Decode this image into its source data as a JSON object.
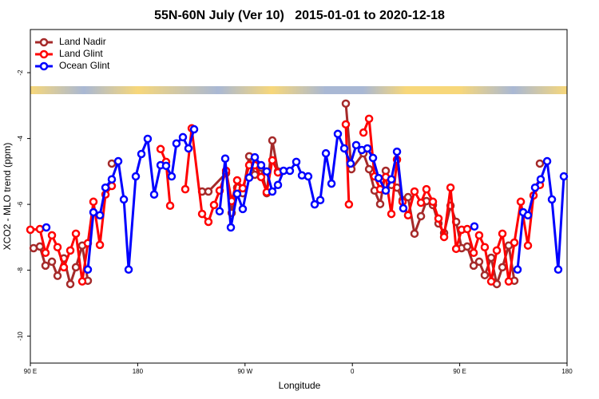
{
  "chart_data": {
    "type": "line",
    "title": "55N-60N July (Ver 10)   2015-01-01 to 2020-12-18",
    "xlabel": "Longitude",
    "ylabel": "XCO2 - MLO trend (ppm)",
    "xlim": [
      90,
      540
    ],
    "xticks": [
      {
        "value": 90,
        "label": "90 E"
      },
      {
        "value": 180,
        "label": "180"
      },
      {
        "value": 270,
        "label": "90 W"
      },
      {
        "value": 360,
        "label": "0"
      },
      {
        "value": 450,
        "label": "90 E"
      },
      {
        "value": 540,
        "label": "180"
      }
    ],
    "ylim": [
      -10.82,
      -0.69
    ],
    "yticks": [
      -2,
      -4,
      -6,
      -8,
      -10
    ],
    "legend": "upper left",
    "series": [
      {
        "name": "Land Nadir",
        "color": "#a52a2a",
        "x": [
          92.7,
          98,
          102.7,
          108.1,
          112.8,
          118.1,
          123.5,
          128.2,
          133.5,
          138.2,
          null,
          158.3,
          null,
          234,
          239.3,
          254.1,
          258.8,
          263.4,
          268.1,
          273.5,
          278.2,
          283.5,
          288.2,
          292.9,
          297.6,
          null,
          354.5,
          359.2,
          369.3,
          374,
          378.6,
          383.3,
          388,
          392.7,
          397.4,
          402.1,
          406.7,
          412.1,
          417.5,
          422.1,
          427.5,
          432.2,
          436.9,
          442.3,
          447,
          451.6,
          456.3,
          461.7,
          466.3,
          471,
          476.4,
          481.1,
          485.8,
          491.1,
          495.8,
          null,
          517.2
        ],
        "values": [
          -7.33,
          -7.28,
          -7.86,
          -7.74,
          -8.17,
          -7.64,
          -8.42,
          -7.91,
          -7.25,
          -8.32,
          null,
          -4.76,
          null,
          -5.61,
          -5.61,
          -5.05,
          -6.26,
          -5.49,
          -5.66,
          -4.54,
          -5.1,
          -4.88,
          -5.66,
          -4.06,
          -5.0,
          null,
          -2.94,
          -4.93,
          -4.45,
          -4.93,
          -5.58,
          -5.99,
          -4.98,
          -5.41,
          -5.49,
          -5.87,
          -5.78,
          -6.89,
          -6.36,
          -5.9,
          -6.02,
          -6.58,
          -6.87,
          -6.04,
          -6.53,
          -7.33,
          -7.28,
          -7.86,
          -7.74,
          -8.15,
          -7.62,
          -8.42,
          -7.91,
          -7.25,
          -8.32,
          null,
          -4.76
        ]
      },
      {
        "name": "Land Glint",
        "color": "#ff0000",
        "x": [
          90,
          98,
          102.7,
          108.1,
          112.8,
          118.1,
          123.5,
          128.2,
          133.5,
          138.2,
          142.9,
          148.3,
          153,
          158.3,
          null,
          199.2,
          203.8,
          207.2,
          null,
          219.9,
          225.3,
          234,
          239.3,
          244,
          248.7,
          254.1,
          258.8,
          263.4,
          268.1,
          273.5,
          278.2,
          283.5,
          288.2,
          292.9,
          297.6,
          null,
          354.5,
          357.1,
          null,
          369.3,
          374,
          378.6,
          383.3,
          388,
          392.7,
          397.4,
          402.1,
          406.7,
          412.1,
          417.5,
          422.1,
          427.5,
          432.2,
          436.9,
          442.3,
          447,
          451.6,
          456.3,
          461.7,
          466.3,
          471,
          476.4,
          481.1,
          485.8,
          491.1,
          495.8,
          501.2,
          507.2,
          511.9,
          517.2
        ],
        "values": [
          -6.77,
          -6.75,
          -7.47,
          -6.94,
          -7.3,
          -7.91,
          -7.4,
          -6.89,
          -8.34,
          -7.18,
          -5.92,
          -7.23,
          -5.7,
          -5.44,
          null,
          -4.32,
          -4.71,
          -6.04,
          null,
          -5.54,
          -3.69,
          -6.29,
          -6.53,
          -6.02,
          -5.58,
          -4.98,
          -5.9,
          -5.27,
          -5.51,
          -4.81,
          -4.81,
          -5.17,
          -5.63,
          -4.66,
          -5.03,
          null,
          -3.57,
          -6.0,
          null,
          -3.82,
          -3.4,
          -5.15,
          -5.54,
          -5.17,
          -6.29,
          -4.64,
          -5.92,
          -6.33,
          -5.61,
          -5.95,
          -5.54,
          -5.92,
          -6.43,
          -6.99,
          -5.49,
          -7.35,
          -6.77,
          -6.75,
          -7.47,
          -6.94,
          -7.3,
          -8.34,
          -7.4,
          -6.89,
          -8.34,
          -7.16,
          -5.92,
          -7.25,
          -5.73,
          -5.41
        ]
      },
      {
        "name": "Ocean Glint",
        "color": "#0000ff",
        "x": [
          103.4,
          null,
          138.2,
          142.9,
          148.3,
          153,
          158.3,
          163.7,
          168.4,
          172.4,
          178.4,
          183.1,
          188.4,
          193.8,
          199.2,
          203.8,
          208.5,
          212.5,
          217.9,
          222.6,
          227.3,
          null,
          248.7,
          253.4,
          258.1,
          263.4,
          268.1,
          273.5,
          278.2,
          283.5,
          288.2,
          292.9,
          297.6,
          302.3,
          307.6,
          313,
          317.7,
          323,
          328.4,
          333.1,
          337.8,
          342.5,
          347.8,
          353.2,
          358.5,
          363.2,
          367.9,
          372.6,
          377.3,
          382,
          388,
          392.7,
          397.4,
          402.7,
          null,
          462.3,
          null,
          498.5,
          503.2,
          507.2,
          513.2,
          517.9,
          523.3,
          527.3,
          532.6,
          537.3
        ],
        "values": [
          -6.7,
          null,
          -7.98,
          -6.24,
          -6.33,
          -5.49,
          -5.24,
          -4.69,
          -5.85,
          -7.98,
          -5.15,
          -4.47,
          -4.01,
          -5.7,
          -4.81,
          -4.83,
          -5.15,
          -4.15,
          -3.96,
          -4.3,
          -3.72,
          null,
          -6.21,
          -4.61,
          -6.7,
          -5.68,
          -6.14,
          -5.19,
          -4.57,
          -4.81,
          -5.0,
          -5.61,
          -5.41,
          -4.98,
          -4.98,
          -4.71,
          -5.12,
          -5.15,
          -6.0,
          -5.87,
          -4.45,
          -5.37,
          -3.86,
          -4.3,
          -4.76,
          -4.2,
          -4.35,
          -4.3,
          -4.59,
          -5.2,
          -5.58,
          -5.24,
          -4.4,
          -6.12,
          null,
          -6.67,
          null,
          -7.98,
          -6.24,
          -6.33,
          -5.49,
          -5.24,
          -4.69,
          -5.85,
          -7.98,
          -5.15
        ]
      }
    ]
  }
}
